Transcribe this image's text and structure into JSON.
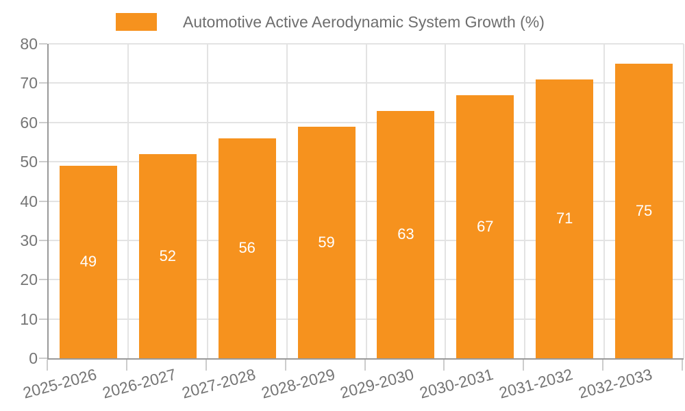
{
  "legend": {
    "label": "Automotive Active Aerodynamic System Growth (%)"
  },
  "chart_data": {
    "type": "bar",
    "title": "Automotive Active Aerodynamic System Growth (%)",
    "categories": [
      "2025-2026",
      "2026-2027",
      "2027-2028",
      "2028-2029",
      "2029-2030",
      "2030-2031",
      "2031-2032",
      "2032-2033"
    ],
    "values": [
      49,
      52,
      56,
      59,
      63,
      67,
      71,
      75
    ],
    "value_labels": [
      "49",
      "52",
      "56",
      "59",
      "63",
      "67",
      "71",
      "75"
    ],
    "ytick_labels": [
      "0",
      "10",
      "20",
      "30",
      "40",
      "50",
      "60",
      "70",
      "80"
    ],
    "xlabel": "",
    "ylabel": "",
    "ylim": [
      0,
      80
    ],
    "ytick_step": 10,
    "grid": true,
    "legend_position": "top-center",
    "x_label_rotation_deg": -15
  },
  "colors": {
    "bar": "#F6921E",
    "value_text": "#FFFFFF",
    "axis_line": "#999999",
    "grid_line": "#E3E3E3",
    "tick_line": "#CCCCCC",
    "axis_text": "#757575",
    "legend_text": "#6E6E6E",
    "background": "#FFFFFF"
  }
}
